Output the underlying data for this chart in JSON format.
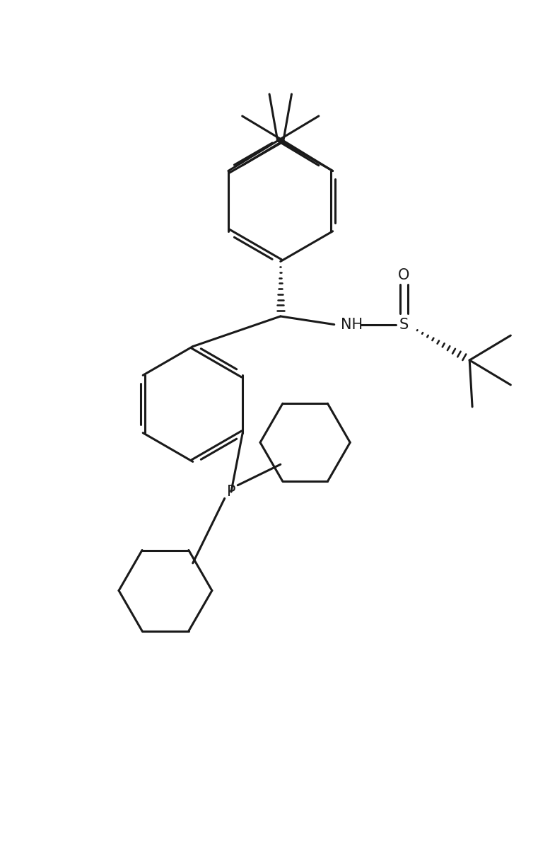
{
  "bg_color": "#ffffff",
  "line_color": "#1a1a1a",
  "line_width": 2.2,
  "font_size": 15,
  "figsize": [
    7.78,
    12.04
  ],
  "xlim": [
    -1.0,
    9.0
  ],
  "ylim": [
    -1.0,
    14.0
  ]
}
